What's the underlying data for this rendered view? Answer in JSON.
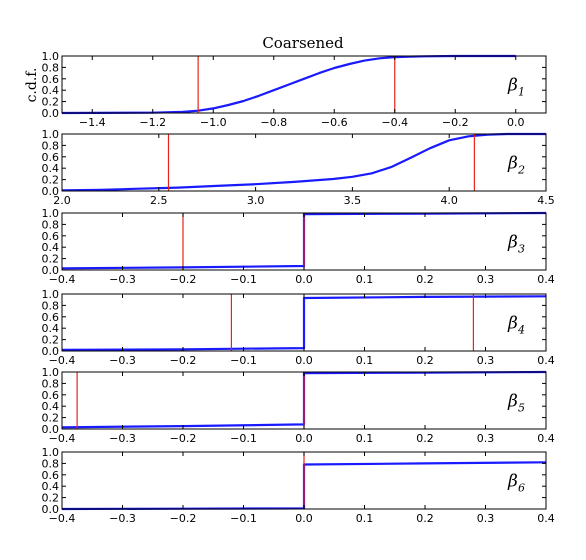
{
  "chart_data": {
    "type": "line",
    "title": "Coarsened",
    "ylabel": "c.d.f.",
    "colors": {
      "cdf_line": "#1a1aff",
      "marker_line": "#e8231c"
    },
    "panels": [
      {
        "label_base": "β",
        "label_sub": "1",
        "xlim": [
          -1.5,
          0.1
        ],
        "ylim": [
          0,
          1
        ],
        "xticks": [
          "−1.4",
          "−1.2",
          "−1.0",
          "−0.8",
          "−0.6",
          "−0.4",
          "−0.2",
          "0.0"
        ],
        "xtick_values": [
          -1.4,
          -1.2,
          -1.0,
          -0.8,
          -0.6,
          -0.4,
          -0.2,
          0.0
        ],
        "yticks": [
          "0.0",
          "0.2",
          "0.4",
          "0.6",
          "0.8",
          "1.0"
        ],
        "markers": [
          -1.05,
          -0.4
        ],
        "series": [
          {
            "x": [
              -1.5,
              -1.2,
              -1.1,
              -1.05,
              -1.0,
              -0.95,
              -0.9,
              -0.85,
              -0.8,
              -0.75,
              -0.7,
              -0.65,
              -0.6,
              -0.55,
              -0.5,
              -0.45,
              -0.4,
              -0.35,
              -0.3,
              -0.2,
              0.0
            ],
            "y": [
              0.0,
              0.005,
              0.02,
              0.04,
              0.08,
              0.14,
              0.21,
              0.3,
              0.4,
              0.5,
              0.6,
              0.7,
              0.79,
              0.86,
              0.92,
              0.96,
              0.98,
              0.99,
              0.995,
              1.0,
              1.0
            ]
          }
        ]
      },
      {
        "label_base": "β",
        "label_sub": "2",
        "xlim": [
          2.0,
          4.5
        ],
        "ylim": [
          0,
          1
        ],
        "xticks": [
          "2.0",
          "2.5",
          "3.0",
          "3.5",
          "4.0",
          "4.5"
        ],
        "xtick_values": [
          2.0,
          2.5,
          3.0,
          3.5,
          4.0,
          4.5
        ],
        "yticks": [
          "0.0",
          "0.2",
          "0.4",
          "0.6",
          "0.8",
          "1.0"
        ],
        "markers": [
          2.55,
          4.13
        ],
        "series": [
          {
            "x": [
              2.0,
              2.2,
              2.4,
              2.6,
              2.8,
              3.0,
              3.2,
              3.4,
              3.5,
              3.6,
              3.7,
              3.8,
              3.9,
              4.0,
              4.1,
              4.2,
              4.3,
              4.5
            ],
            "y": [
              0.01,
              0.02,
              0.04,
              0.06,
              0.09,
              0.12,
              0.16,
              0.21,
              0.25,
              0.31,
              0.42,
              0.58,
              0.75,
              0.89,
              0.96,
              0.99,
              1.0,
              1.0
            ]
          }
        ]
      },
      {
        "label_base": "β",
        "label_sub": "3",
        "xlim": [
          -0.4,
          0.4
        ],
        "ylim": [
          0,
          1
        ],
        "xticks": [
          "−0.4",
          "−0.3",
          "−0.2",
          "−0.1",
          "0.0",
          "0.1",
          "0.2",
          "0.3",
          "0.4"
        ],
        "xtick_values": [
          -0.4,
          -0.3,
          -0.2,
          -0.1,
          0.0,
          0.1,
          0.2,
          0.3,
          0.4
        ],
        "yticks": [
          "0.0",
          "0.2",
          "0.4",
          "0.6",
          "0.8",
          "1.0"
        ],
        "markers": [
          -0.2,
          0.0
        ],
        "series": [
          {
            "x": [
              -0.4,
              -0.2,
              0.0,
              0.0,
              0.2,
              0.4
            ],
            "y": [
              0.03,
              0.045,
              0.07,
              0.98,
              0.99,
              1.0
            ]
          }
        ]
      },
      {
        "label_base": "β",
        "label_sub": "4",
        "xlim": [
          -0.4,
          0.4
        ],
        "ylim": [
          0,
          1
        ],
        "xticks": [
          "−0.4",
          "−0.3",
          "−0.2",
          "−0.1",
          "0.0",
          "0.1",
          "0.2",
          "0.3",
          "0.4"
        ],
        "xtick_values": [
          -0.4,
          -0.3,
          -0.2,
          -0.1,
          0.0,
          0.1,
          0.2,
          0.3,
          0.4
        ],
        "yticks": [
          "0.0",
          "0.2",
          "0.4",
          "0.6",
          "0.8",
          "1.0"
        ],
        "markers": [
          -0.12,
          0.28
        ],
        "series": [
          {
            "x": [
              -0.4,
              -0.2,
              0.0,
              0.0,
              0.2,
              0.4
            ],
            "y": [
              0.02,
              0.03,
              0.05,
              0.93,
              0.95,
              0.96
            ]
          }
        ]
      },
      {
        "label_base": "β",
        "label_sub": "5",
        "xlim": [
          -0.4,
          0.4
        ],
        "ylim": [
          0,
          1
        ],
        "xticks": [
          "−0.4",
          "−0.3",
          "−0.2",
          "−0.1",
          "0.0",
          "0.1",
          "0.2",
          "0.3",
          "0.4"
        ],
        "xtick_values": [
          -0.4,
          -0.3,
          -0.2,
          -0.1,
          0.0,
          0.1,
          0.2,
          0.3,
          0.4
        ],
        "yticks": [
          "0.0",
          "0.2",
          "0.4",
          "0.6",
          "0.8",
          "1.0"
        ],
        "markers": [
          -0.375,
          0.0
        ],
        "series": [
          {
            "x": [
              -0.4,
              -0.2,
              0.0,
              0.0,
              0.2,
              0.4
            ],
            "y": [
              0.03,
              0.05,
              0.08,
              0.98,
              0.99,
              1.0
            ]
          }
        ]
      },
      {
        "label_base": "β",
        "label_sub": "6",
        "xlim": [
          -0.4,
          0.4
        ],
        "ylim": [
          0,
          1
        ],
        "xticks": [
          "−0.4",
          "−0.3",
          "−0.2",
          "−0.1",
          "0.0",
          "0.1",
          "0.2",
          "0.3",
          "0.4"
        ],
        "xtick_values": [
          -0.4,
          -0.3,
          -0.2,
          -0.1,
          0.0,
          0.1,
          0.2,
          0.3,
          0.4
        ],
        "yticks": [
          "0.0",
          "0.2",
          "0.4",
          "0.6",
          "0.8",
          "1.0"
        ],
        "markers": [
          0.0
        ],
        "series": [
          {
            "x": [
              -0.4,
              -0.2,
              0.0,
              0.0,
              0.2,
              0.4
            ],
            "y": [
              0.0,
              0.005,
              0.01,
              0.78,
              0.8,
              0.82
            ]
          }
        ]
      }
    ]
  }
}
